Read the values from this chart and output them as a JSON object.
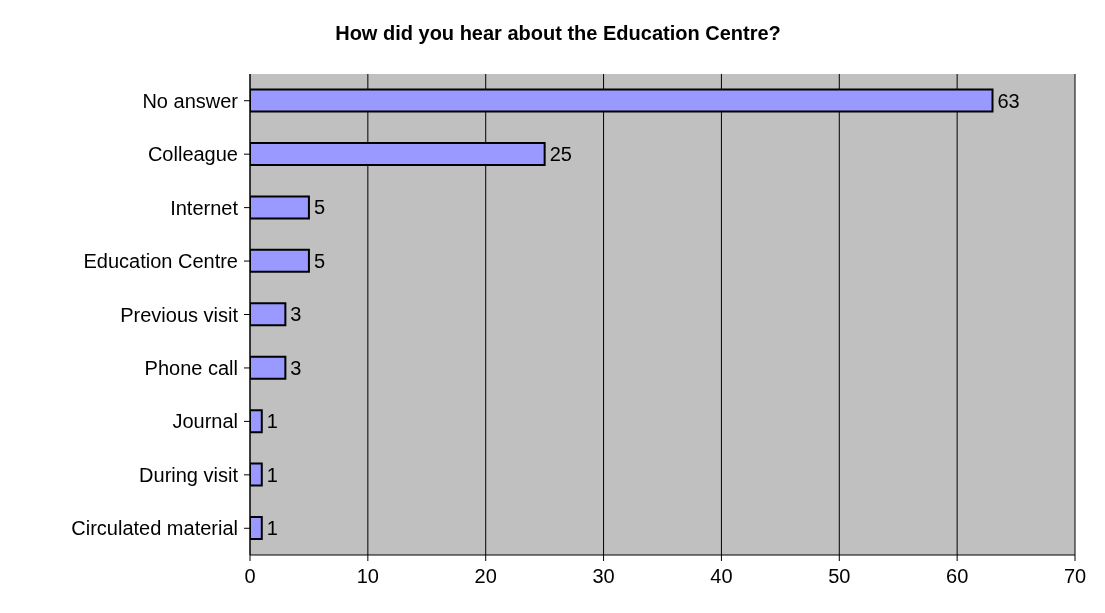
{
  "chart_data": {
    "type": "bar",
    "orientation": "horizontal",
    "title": "How did you hear about the Education Centre?",
    "categories": [
      "No answer",
      "Colleague",
      "Internet",
      "Education Centre",
      "Previous visit",
      "Phone call",
      "Journal",
      "During visit",
      "Circulated material"
    ],
    "values": [
      63,
      25,
      5,
      5,
      3,
      3,
      1,
      1,
      1
    ],
    "color": "#9999ff",
    "xlim": [
      0,
      70
    ],
    "xticks": [
      0,
      10,
      20,
      30,
      40,
      50,
      60,
      70
    ],
    "grid": "x",
    "data_labels": true
  }
}
